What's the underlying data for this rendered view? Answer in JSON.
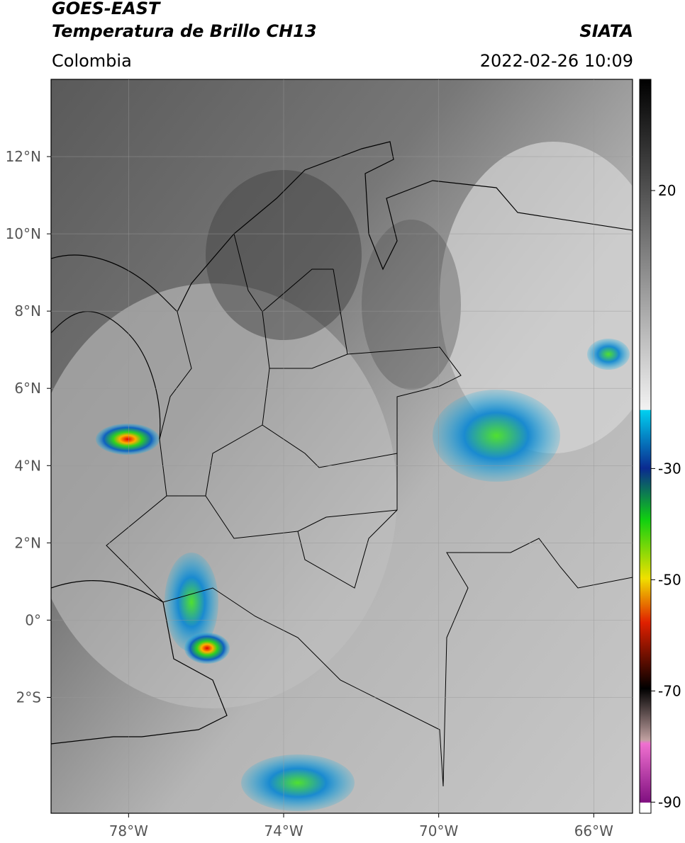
{
  "header": {
    "satellite": "GOES-EAST",
    "product": "Temperatura de Brillo CH13",
    "agency": "SIATA",
    "region": "Colombia",
    "datetime": "2022-02-26 10:09"
  },
  "map": {
    "xlim": [
      -80,
      -65
    ],
    "ylim": [
      -5,
      14
    ],
    "xticks": [
      {
        "value": -78,
        "label": "78°W"
      },
      {
        "value": -74,
        "label": "74°W"
      },
      {
        "value": -70,
        "label": "70°W"
      },
      {
        "value": -66,
        "label": "66°W"
      }
    ],
    "yticks": [
      {
        "value": 12,
        "label": "12°N"
      },
      {
        "value": 10,
        "label": "10°N"
      },
      {
        "value": 8,
        "label": "8°N"
      },
      {
        "value": 6,
        "label": "6°N"
      },
      {
        "value": 4,
        "label": "4°N"
      },
      {
        "value": 2,
        "label": "2°N"
      },
      {
        "value": 0,
        "label": "0°"
      },
      {
        "value": -2,
        "label": "2°S"
      }
    ],
    "grid": true
  },
  "colorbar": {
    "ylim": [
      -92,
      40
    ],
    "yticks": [
      20,
      -30,
      -50,
      -70,
      -90
    ]
  }
}
